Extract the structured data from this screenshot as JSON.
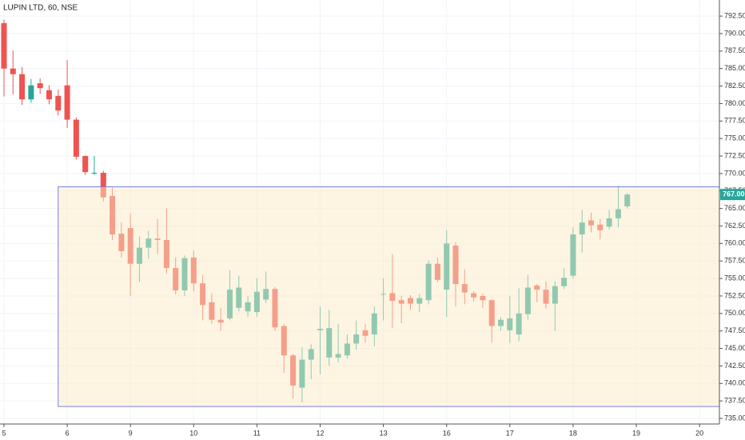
{
  "chart_data": {
    "type": "candlestick",
    "title": "LUPIN LTD, 60, NSE",
    "up_color": "#26a69a",
    "down_color": "#ef5350",
    "grid": true,
    "ylim": [
      734.2,
      794.8
    ],
    "yticks": [
      {
        "value": 735,
        "label": "735.00"
      },
      {
        "value": 737.5,
        "label": "737.50"
      },
      {
        "value": 740,
        "label": "740.00"
      },
      {
        "value": 742.5,
        "label": "742.50"
      },
      {
        "value": 745,
        "label": "745.00"
      },
      {
        "value": 747.5,
        "label": "747.50"
      },
      {
        "value": 750,
        "label": "750.00"
      },
      {
        "value": 752.5,
        "label": "752.50"
      },
      {
        "value": 755,
        "label": "755.00"
      },
      {
        "value": 757.5,
        "label": "757.50"
      },
      {
        "value": 760,
        "label": "760.00"
      },
      {
        "value": 762.5,
        "label": "762.50"
      },
      {
        "value": 765,
        "label": "765.00"
      },
      {
        "value": 767.5,
        "label": "767.50"
      },
      {
        "value": 770,
        "label": "770.00"
      },
      {
        "value": 772.5,
        "label": "772.50"
      },
      {
        "value": 775,
        "label": "775.00"
      },
      {
        "value": 777.5,
        "label": "777.50"
      },
      {
        "value": 780,
        "label": "780.00"
      },
      {
        "value": 782.5,
        "label": "782.50"
      },
      {
        "value": 785,
        "label": "785.00"
      },
      {
        "value": 787.5,
        "label": "787.50"
      },
      {
        "value": 790,
        "label": "790.00"
      },
      {
        "value": 792.5,
        "label": "792.50"
      }
    ],
    "xlim": [
      -0.44,
      79.2
    ],
    "xticks": [
      {
        "value": 0,
        "label": "5"
      },
      {
        "value": 7,
        "label": "6"
      },
      {
        "value": 14,
        "label": "9"
      },
      {
        "value": 21,
        "label": "10"
      },
      {
        "value": 28,
        "label": "11"
      },
      {
        "value": 35,
        "label": "12"
      },
      {
        "value": 42,
        "label": "13"
      },
      {
        "value": 49,
        "label": "16"
      },
      {
        "value": 56,
        "label": "17"
      },
      {
        "value": 63,
        "label": "18"
      },
      {
        "value": 70,
        "label": "19"
      },
      {
        "value": 77,
        "label": "20"
      }
    ],
    "open": [
      791.5,
      785.0,
      784.2,
      780.6,
      782.9,
      781.9,
      781.1,
      782.6,
      777.7,
      772.5,
      770.0,
      770.1,
      766.8,
      761.4,
      762.2,
      757.1,
      759.4,
      760.7,
      760.5,
      756.5,
      753.3,
      758.0,
      754.3,
      751.6,
      749.1,
      749.3,
      750.8,
      750.3,
      750.2,
      752.0,
      753.5,
      748.2,
      744.0,
      739.4,
      743.4,
      747.6,
      743.7,
      743.7,
      744.0,
      745.7,
      747.6,
      747.0,
      752.7,
      752.9,
      751.9,
      752.2,
      751.4,
      751.9,
      757.1,
      753.4,
      759.7,
      754.2,
      752.9,
      752.5,
      751.9,
      748.2,
      747.6,
      747.0,
      749.9,
      754.0,
      753.4,
      751.4,
      753.9,
      755.4,
      761.3,
      763.3,
      762.7,
      762.4,
      763.6,
      765.3
    ],
    "high": [
      792.0,
      787.6,
      785.2,
      783.5,
      783.6,
      782.6,
      782.0,
      786.2,
      778.0,
      772.6,
      772.5,
      770.4,
      768.0,
      763.0,
      764.3,
      761.0,
      761.8,
      763.5,
      765.0,
      758.0,
      758.3,
      759.0,
      755.5,
      752.9,
      750.8,
      756.2,
      755.4,
      752.5,
      755.0,
      756.0,
      753.8,
      748.5,
      744.2,
      745.2,
      745.6,
      751.0,
      750.5,
      748.5,
      747.0,
      749.0,
      748.5,
      751.0,
      755.0,
      758.5,
      752.5,
      752.6,
      752.8,
      757.6,
      758.0,
      761.9,
      760.2,
      756.3,
      753.2,
      752.8,
      752.0,
      749.5,
      752.5,
      753.6,
      755.5,
      754.2,
      754.6,
      754.6,
      756.5,
      762.3,
      764.8,
      764.4,
      763.5,
      764.8,
      768.2,
      767.2
    ],
    "low": [
      781.0,
      781.3,
      779.8,
      780.1,
      781.4,
      779.9,
      778.3,
      776.5,
      772.0,
      769.8,
      769.8,
      766.0,
      760.5,
      758.0,
      752.5,
      754.5,
      757.8,
      758.5,
      755.7,
      752.7,
      752.5,
      753.2,
      749.0,
      748.5,
      747.5,
      749.0,
      750.3,
      749.5,
      749.5,
      751.5,
      747.5,
      741.5,
      737.8,
      737.3,
      740.6,
      741.3,
      742.5,
      743.0,
      743.5,
      744.8,
      745.8,
      745.3,
      749.0,
      747.9,
      748.6,
      750.5,
      750.2,
      751.3,
      754.5,
      749.5,
      751.0,
      751.3,
      751.7,
      750.8,
      745.8,
      747.5,
      745.8,
      746.0,
      749.1,
      751.6,
      750.7,
      747.5,
      753.5,
      755.0,
      758.7,
      761.6,
      760.6,
      762.0,
      762.3,
      765.0
    ],
    "close": [
      785.0,
      784.2,
      780.6,
      782.6,
      782.2,
      780.6,
      779.0,
      777.7,
      772.4,
      770.2,
      770.1,
      766.6,
      761.3,
      758.9,
      757.1,
      759.4,
      760.7,
      760.5,
      756.5,
      753.3,
      757.9,
      754.3,
      751.2,
      749.1,
      748.7,
      753.4,
      753.7,
      751.6,
      753.1,
      753.5,
      748.0,
      744.0,
      739.7,
      743.4,
      744.9,
      747.8,
      747.9,
      744.2,
      745.7,
      747.0,
      746.8,
      750.0,
      752.8,
      751.8,
      751.4,
      751.4,
      752.2,
      757.1,
      754.8,
      760.0,
      754.2,
      753.0,
      752.3,
      751.9,
      748.2,
      749.1,
      749.3,
      750.0,
      753.7,
      753.4,
      751.4,
      753.9,
      755.1,
      761.3,
      763.0,
      762.6,
      761.9,
      763.6,
      764.9,
      767.0
    ],
    "zone": {
      "top": 768.1,
      "bottom": 736.7,
      "start": 6,
      "color": "#7b7fe0"
    },
    "last_price": {
      "value": 767.0,
      "label": "767.00"
    }
  }
}
